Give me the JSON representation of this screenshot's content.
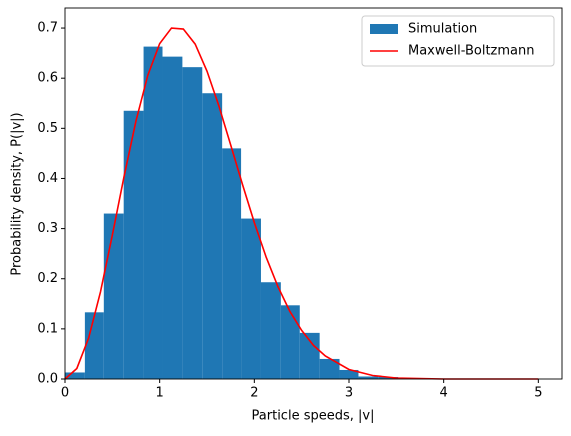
{
  "chart_data": {
    "type": "histogram",
    "xlabel": "Particle speeds, |v|",
    "ylabel": "Probability density, P(|v|)",
    "xlim": [
      0,
      5.25
    ],
    "ylim": [
      0,
      0.74
    ],
    "xticks": [
      0,
      1,
      2,
      3,
      4,
      5
    ],
    "yticks": [
      {
        "value": 0,
        "label": "0.0"
      },
      {
        "value": 0.1,
        "label": "0.1"
      },
      {
        "value": 0.2,
        "label": "0.2"
      },
      {
        "value": 0.3,
        "label": "0.3"
      },
      {
        "value": 0.4,
        "label": "0.4"
      },
      {
        "value": 0.5,
        "label": "0.5"
      },
      {
        "value": 0.6,
        "label": "0.6"
      },
      {
        "value": 0.7,
        "label": "0.7"
      }
    ],
    "legend": "upper right",
    "series": [
      {
        "name": "Simulation",
        "type": "histogram",
        "color": "#1f77b4",
        "bins": [
          0.0,
          0.21,
          0.41,
          0.62,
          0.83,
          1.03,
          1.24,
          1.45,
          1.66,
          1.86,
          2.07,
          2.28,
          2.48,
          2.69,
          2.9,
          3.1,
          3.31,
          3.52
        ],
        "values": [
          0.013,
          0.133,
          0.33,
          0.535,
          0.663,
          0.643,
          0.622,
          0.57,
          0.46,
          0.32,
          0.193,
          0.147,
          0.092,
          0.04,
          0.018,
          0.005,
          0.004
        ]
      },
      {
        "name": "Maxwell-Boltzmann",
        "type": "line",
        "color": "#ff0000",
        "x": [
          0,
          0.125,
          0.25,
          0.375,
          0.5,
          0.625,
          0.75,
          0.875,
          1.0,
          1.125,
          1.25,
          1.375,
          1.5,
          1.625,
          1.75,
          1.875,
          2.0,
          2.125,
          2.25,
          2.375,
          2.5,
          2.625,
          2.75,
          3.0,
          3.25,
          3.5,
          3.75,
          4.0,
          4.5,
          5.0
        ],
        "values": [
          0,
          0.021,
          0.082,
          0.174,
          0.287,
          0.405,
          0.515,
          0.606,
          0.669,
          0.7,
          0.698,
          0.668,
          0.614,
          0.545,
          0.467,
          0.388,
          0.312,
          0.243,
          0.184,
          0.135,
          0.097,
          0.067,
          0.046,
          0.019,
          0.007,
          0.002,
          0.001,
          0,
          0,
          0
        ]
      }
    ]
  }
}
